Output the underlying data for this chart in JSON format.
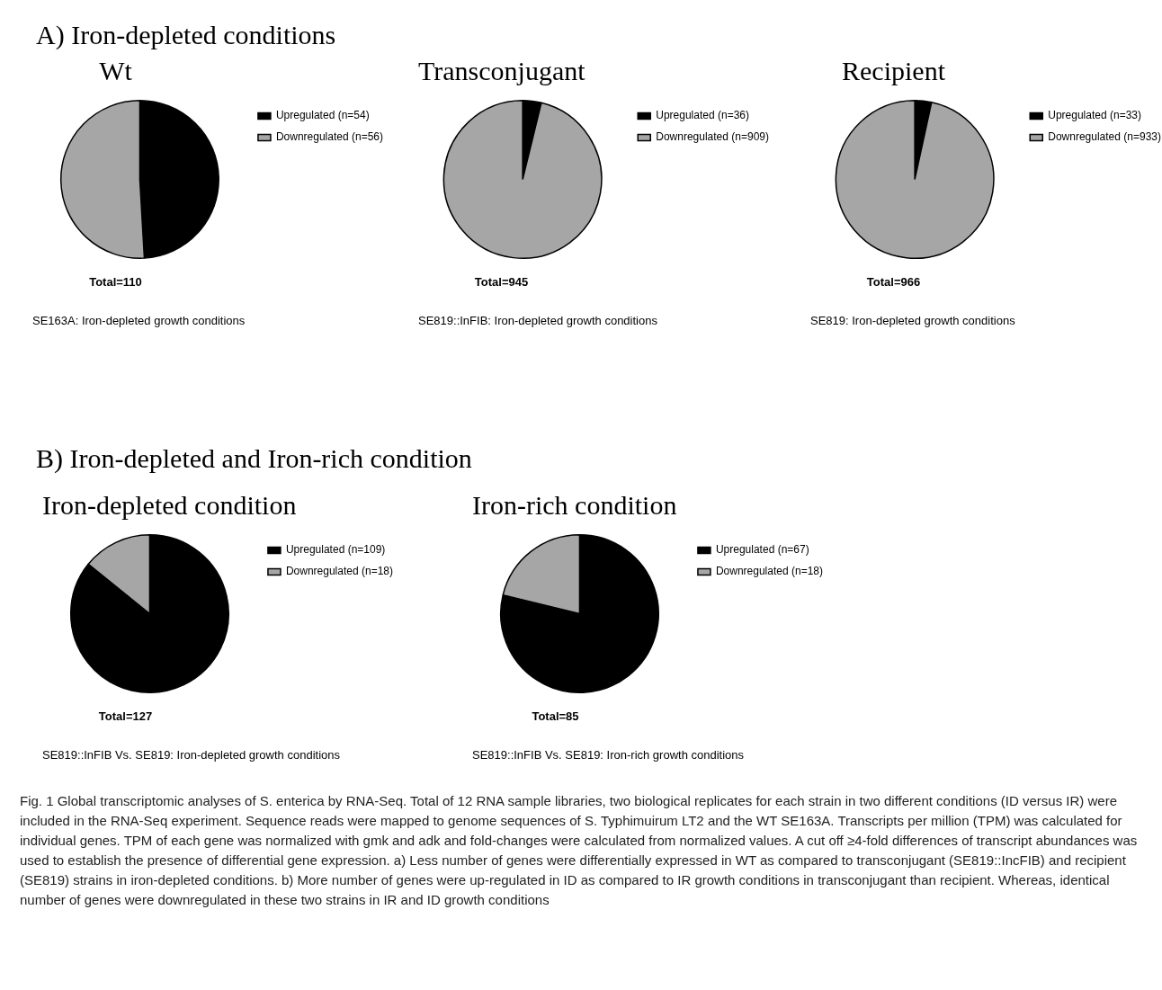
{
  "chart_data": [
    {
      "type": "other",
      "title": "A) Iron-depleted conditions"
    },
    {
      "type": "pie",
      "title": "Wt",
      "categories": [
        "Upregulated (n=54)",
        "Downregulated (n=56)"
      ],
      "values": [
        54,
        56
      ],
      "colors": [
        "#000000",
        "#a6a6a6"
      ],
      "legend": "top right",
      "annotations": [
        "Total=110",
        "SE163A: Iron-depleted growth conditions"
      ]
    },
    {
      "type": "pie",
      "title": "Transconjugant",
      "categories": [
        "Upregulated (n=36)",
        "Downregulated (n=909)"
      ],
      "values": [
        36,
        909
      ],
      "colors": [
        "#000000",
        "#a6a6a6"
      ],
      "legend": "top right",
      "annotations": [
        "Total=945",
        "SE819::InFIB: Iron-depleted growth conditions"
      ]
    },
    {
      "type": "pie",
      "title": "Recipient",
      "categories": [
        "Upregulated (n=33)",
        "Downregulated (n=933)"
      ],
      "values": [
        33,
        933
      ],
      "colors": [
        "#000000",
        "#a6a6a6"
      ],
      "legend": "top right",
      "annotations": [
        "Total=966",
        "SE819: Iron-depleted growth conditions"
      ]
    },
    {
      "type": "other",
      "title": "B) Iron-depleted and Iron-rich condition"
    },
    {
      "type": "pie",
      "title": "Iron-depleted condition",
      "categories": [
        "Upregulated (n=109)",
        "Downregulated (n=18)"
      ],
      "values": [
        109,
        18
      ],
      "colors": [
        "#000000",
        "#a6a6a6"
      ],
      "legend": "top right",
      "annotations": [
        "Total=127",
        "SE819::InFIB Vs. SE819: Iron-depleted growth conditions"
      ]
    },
    {
      "type": "pie",
      "title": "Iron-rich condition",
      "categories": [
        "Upregulated (n=67)",
        "Downregulated (n=18)"
      ],
      "values": [
        67,
        18
      ],
      "colors": [
        "#000000",
        "#a6a6a6"
      ],
      "legend": "top right",
      "annotations": [
        "Total=85",
        "SE819::InFIB Vs. SE819: Iron-rich growth conditions"
      ]
    },
    {
      "type": "other",
      "annotations": [
        "Fig. 1 Global transcriptomic analyses of S. enterica by RNA-Seq. Total of 12 RNA sample libraries, two biological replicates for each strain in two different conditions (ID versus IR) were included in the RNA-Seq experiment. Sequence reads were mapped to genome sequences of S. Typhimuirum LT2 and the WT SE163A. Transcripts per million (TPM) was calculated for individual genes. TPM of each gene was normalized with gmk and adk and fold-changes were calculated from normalized values. A cut off ≥4-fold differences of transcript abundances was used to establish the presence of differential gene expression. a) Less number of genes were differentially expressed in WT as compared to transconjugant (SE819::IncFIB) and recipient (SE819) strains in iron-depleted conditions. b) More number of genes were up-regulated in ID as compared to IR growth conditions in transconjugant than recipient. Whereas, identical number of genes were downregulated in these two strains in IR and ID growth conditions"
      ]
    }
  ]
}
